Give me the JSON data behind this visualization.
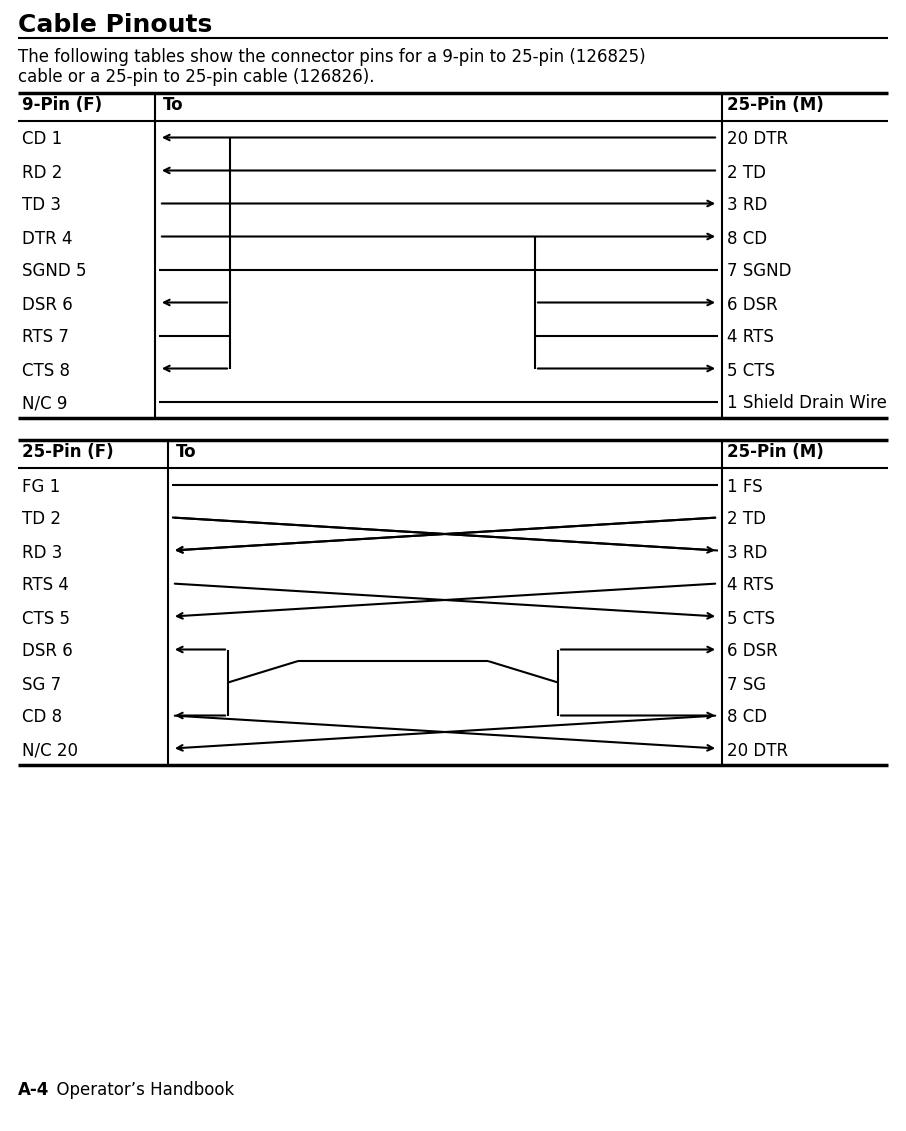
{
  "title": "Cable Pinouts",
  "desc1": "The following tables show the connector pins for a 9-pin to 25-pin (126825)",
  "desc2": "cable or a 25-pin to 25-pin cable (126826).",
  "footer_bold": "A-4",
  "footer_normal": "  Operator’s Handbook",
  "t1_hdr": [
    "9-Pin (F)",
    "To",
    "25-Pin (M)"
  ],
  "t1_left": [
    "CD 1",
    "RD 2",
    "TD 3",
    "DTR 4",
    "SGND 5",
    "DSR 6",
    "RTS 7",
    "CTS 8",
    "N/C 9"
  ],
  "t1_right": [
    "20 DTR",
    "2 TD",
    "3 RD",
    "8 CD",
    "7 SGND",
    "6 DSR",
    "4 RTS",
    "5 CTS",
    "1 Shield Drain Wire"
  ],
  "t2_hdr": [
    "25-Pin (F)",
    "To",
    "25-Pin (M)"
  ],
  "t2_left": [
    "FG 1",
    "TD 2",
    "RD 3",
    "RTS 4",
    "CTS 5",
    "DSR 6",
    "SG 7",
    "CD 8",
    "N/C 20"
  ],
  "t2_right": [
    "1 FS",
    "2 TD",
    "3 RD",
    "4 RTS",
    "5 CTS",
    "6 DSR",
    "7 SG",
    "8 CD",
    "20 DTR"
  ]
}
